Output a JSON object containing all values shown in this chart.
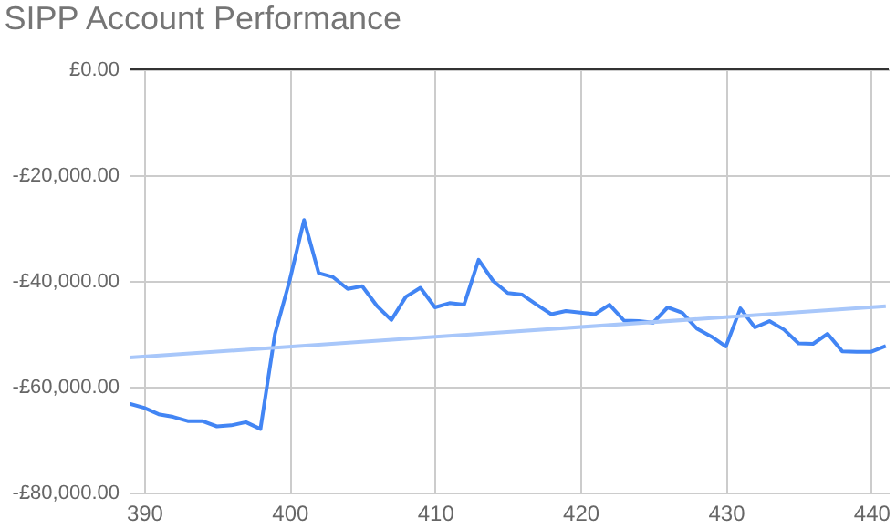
{
  "chart_data": {
    "type": "line",
    "title": "SIPP Account Performance",
    "x": [
      389,
      390,
      391,
      392,
      393,
      394,
      395,
      396,
      397,
      398,
      399,
      400,
      401,
      402,
      403,
      404,
      405,
      406,
      407,
      408,
      409,
      410,
      411,
      412,
      413,
      414,
      415,
      416,
      417,
      418,
      419,
      420,
      421,
      422,
      423,
      424,
      425,
      426,
      427,
      428,
      429,
      430,
      431,
      432,
      433,
      434,
      435,
      436,
      437,
      438,
      439,
      440,
      441
    ],
    "series": [
      {
        "color": "#4285f4",
        "values": [
          -63200,
          -64000,
          -65200,
          -65700,
          -66500,
          -66500,
          -67500,
          -67300,
          -66700,
          -68000,
          -50000,
          -40000,
          -28500,
          -38500,
          -39300,
          -41500,
          -41000,
          -44700,
          -47400,
          -43000,
          -41300,
          -45000,
          -44200,
          -44500,
          -36000,
          -40000,
          -42300,
          -42600,
          -44500,
          -46300,
          -45700,
          -46000,
          -46300,
          -44500,
          -47500,
          -47600,
          -47900,
          -45000,
          -46000,
          -49000,
          -50500,
          -52400,
          -45200,
          -48800,
          -47600,
          -49200,
          -51800,
          -51900,
          -50000,
          -53300,
          -53400,
          -53400,
          -52300
        ]
      },
      {
        "type": "line",
        "color": "#a8c7fa",
        "x": [
          389,
          441
        ],
        "values": [
          -54500,
          -44800
        ]
      }
    ],
    "xlim": [
      389,
      441.2
    ],
    "xticks": [
      390,
      400,
      410,
      420,
      430,
      440
    ],
    "ylim": [
      -80000,
      0
    ],
    "yticks": [
      {
        "value": 0,
        "label": "£0.00"
      },
      {
        "value": -20000,
        "label": "-£20,000.00"
      },
      {
        "value": -40000,
        "label": "-£40,000.00"
      },
      {
        "value": -60000,
        "label": "-£60,000.00"
      },
      {
        "value": -80000,
        "label": "-£80,000.00"
      }
    ],
    "grid": true
  }
}
